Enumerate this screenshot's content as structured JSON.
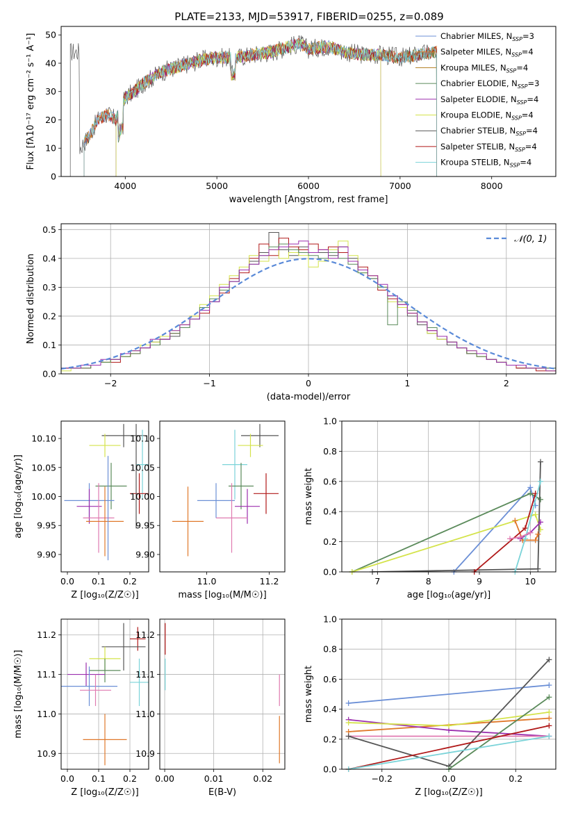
{
  "title": "PLATE=2133, MJD=53917, FIBERID=0255, z=0.089",
  "colors": {
    "Chabrier MILES": "#6b8fd6",
    "Salpeter MILES": "#e0782a",
    "Kroupa MILES": "#b07b1c",
    "Chabrier ELODIE": "#5a8a5a",
    "Salpeter ELODIE": "#9b2fae",
    "Kroupa ELODIE": "#d4e34a",
    "Chabrier STELIB": "#555555",
    "Salpeter STELIB": "#b01818",
    "Kroupa STELIB": "#7ad3d8",
    "pink": "#e07ab0",
    "normal_curve": "#5a8ad8"
  },
  "legend1": [
    {
      "name": "Chabrier MILES",
      "label": "Chabrier MILES, N",
      "sub": "SSP",
      "tail": "=3"
    },
    {
      "name": "Salpeter MILES",
      "label": "Salpeter MILES, N",
      "sub": "SSP",
      "tail": "=4"
    },
    {
      "name": "Kroupa MILES",
      "label": "Kroupa MILES, N",
      "sub": "SSP",
      "tail": "=4"
    },
    {
      "name": "Chabrier ELODIE",
      "label": "Chabrier ELODIE, N",
      "sub": "SSP",
      "tail": "=3"
    },
    {
      "name": "Salpeter ELODIE",
      "label": "Salpeter ELODIE, N",
      "sub": "SSP",
      "tail": "=4"
    },
    {
      "name": "Kroupa ELODIE",
      "label": "Kroupa ELODIE, N",
      "sub": "SSP",
      "tail": "=4"
    },
    {
      "name": "Chabrier STELIB",
      "label": "Chabrier STELIB, N",
      "sub": "SSP",
      "tail": "=4"
    },
    {
      "name": "Salpeter STELIB",
      "label": "Salpeter STELIB, N",
      "sub": "SSP",
      "tail": "=4"
    },
    {
      "name": "Kroupa STELIB",
      "label": "Kroupa STELIB, N",
      "sub": "SSP",
      "tail": "=4"
    }
  ],
  "legend2": {
    "label": "𝒩(0, 1)"
  },
  "chart_data": [
    {
      "id": "spectrum",
      "type": "line",
      "xlabel": "wavelength [Angstrom, rest frame]",
      "ylabel": "Flux [f_λ 10^-17 erg cm^-2 s^-1 A^-1]",
      "xlim": [
        3300,
        8700
      ],
      "ylim": [
        0,
        53
      ],
      "xticks": [
        4000,
        5000,
        6000,
        7000,
        8000
      ],
      "yticks": [
        0,
        10,
        20,
        30,
        40,
        50
      ],
      "series_trace": {
        "x": [
          3500,
          3600,
          3700,
          3800,
          3900,
          4000,
          4100,
          4200,
          4300,
          4400,
          4600,
          4800,
          5000,
          5200,
          5400,
          5600,
          5800,
          5900,
          6000,
          6200,
          6400,
          6600,
          6800,
          7000,
          7200,
          7400
        ],
        "y": [
          10,
          14,
          20,
          22,
          20,
          28,
          30,
          33,
          35,
          37,
          39,
          41,
          42,
          42,
          43,
          44,
          46,
          47,
          45,
          46,
          44,
          43,
          43,
          42,
          43,
          44
        ]
      }
    },
    {
      "id": "residual_hist",
      "type": "bar",
      "xlabel": "(data-model)/error",
      "ylabel": "Normed distribution",
      "xlim": [
        -2.5,
        2.5
      ],
      "ylim": [
        0,
        0.52
      ],
      "xticks": [
        -2,
        -1,
        0,
        1,
        2
      ],
      "yticks": [
        0.0,
        0.1,
        0.2,
        0.3,
        0.4,
        0.5
      ],
      "bin_edges": [
        -2.5,
        -2.4,
        -2.3,
        -2.2,
        -2.1,
        -2.0,
        -1.9,
        -1.8,
        -1.7,
        -1.6,
        -1.5,
        -1.4,
        -1.3,
        -1.2,
        -1.1,
        -1.0,
        -0.9,
        -0.8,
        -0.7,
        -0.6,
        -0.5,
        -0.4,
        -0.3,
        -0.2,
        -0.1,
        0.0,
        0.1,
        0.2,
        0.3,
        0.4,
        0.5,
        0.6,
        0.7,
        0.8,
        0.9,
        1.0,
        1.1,
        1.2,
        1.3,
        1.4,
        1.5,
        1.6,
        1.7,
        1.8,
        1.9,
        2.0,
        2.1,
        2.2,
        2.3,
        2.4,
        2.5
      ],
      "series": [
        {
          "name": "Chabrier STELIB",
          "values": [
            0.02,
            0.02,
            0.03,
            0.03,
            0.04,
            0.05,
            0.06,
            0.08,
            0.09,
            0.11,
            0.12,
            0.13,
            0.16,
            0.19,
            0.23,
            0.25,
            0.3,
            0.32,
            0.36,
            0.39,
            0.42,
            0.49,
            0.43,
            0.41,
            0.44,
            0.42,
            0.42,
            0.41,
            0.44,
            0.4,
            0.36,
            0.33,
            0.3,
            0.27,
            0.23,
            0.2,
            0.17,
            0.14,
            0.12,
            0.1,
            0.09,
            0.07,
            0.06,
            0.05,
            0.04,
            0.03,
            0.02,
            0.02,
            0.02,
            0.02
          ]
        },
        {
          "name": "Salpeter STELIB",
          "values": [
            0.02,
            0.02,
            0.02,
            0.03,
            0.04,
            0.04,
            0.06,
            0.07,
            0.09,
            0.1,
            0.12,
            0.14,
            0.17,
            0.2,
            0.21,
            0.26,
            0.28,
            0.33,
            0.35,
            0.4,
            0.45,
            0.41,
            0.47,
            0.44,
            0.43,
            0.45,
            0.43,
            0.44,
            0.42,
            0.39,
            0.37,
            0.34,
            0.29,
            0.26,
            0.24,
            0.21,
            0.18,
            0.15,
            0.13,
            0.11,
            0.09,
            0.07,
            0.06,
            0.05,
            0.04,
            0.03,
            0.02,
            0.02,
            0.01,
            0.01
          ]
        },
        {
          "name": "Kroupa ELODIE",
          "values": [
            0.01,
            0.02,
            0.03,
            0.03,
            0.04,
            0.05,
            0.06,
            0.08,
            0.1,
            0.11,
            0.13,
            0.15,
            0.17,
            0.2,
            0.24,
            0.27,
            0.31,
            0.34,
            0.37,
            0.41,
            0.39,
            0.43,
            0.4,
            0.42,
            0.41,
            0.37,
            0.39,
            0.43,
            0.46,
            0.41,
            0.35,
            0.34,
            0.3,
            0.25,
            0.23,
            0.21,
            0.18,
            0.14,
            0.12,
            0.11,
            0.09,
            0.08,
            0.06,
            0.05,
            0.04,
            0.03,
            0.03,
            0.02,
            0.02,
            0.01
          ]
        },
        {
          "name": "Chabrier ELODIE",
          "values": [
            0.02,
            0.02,
            0.02,
            0.03,
            0.04,
            0.05,
            0.06,
            0.07,
            0.09,
            0.1,
            0.12,
            0.14,
            0.16,
            0.19,
            0.23,
            0.26,
            0.29,
            0.32,
            0.36,
            0.38,
            0.41,
            0.44,
            0.45,
            0.43,
            0.42,
            0.41,
            0.4,
            0.42,
            0.4,
            0.38,
            0.35,
            0.33,
            0.3,
            0.17,
            0.25,
            0.22,
            0.18,
            0.16,
            0.13,
            0.11,
            0.09,
            0.07,
            0.06,
            0.05,
            0.04,
            0.03,
            0.03,
            0.02,
            0.02,
            0.02
          ]
        },
        {
          "name": "Salpeter ELODIE",
          "values": [
            0.02,
            0.02,
            0.03,
            0.03,
            0.05,
            0.05,
            0.07,
            0.08,
            0.09,
            0.12,
            0.12,
            0.15,
            0.17,
            0.19,
            0.22,
            0.25,
            0.3,
            0.32,
            0.36,
            0.38,
            0.41,
            0.43,
            0.44,
            0.45,
            0.46,
            0.42,
            0.43,
            0.4,
            0.44,
            0.39,
            0.36,
            0.34,
            0.31,
            0.27,
            0.24,
            0.21,
            0.18,
            0.15,
            0.13,
            0.11,
            0.09,
            0.08,
            0.07,
            0.05,
            0.04,
            0.03,
            0.03,
            0.02,
            0.02,
            0.01
          ]
        }
      ],
      "normal": {
        "label": "N(0,1)",
        "mu": 0,
        "sigma": 1
      }
    },
    {
      "id": "age_vs_Z",
      "type": "scatter",
      "xlabel": "Z [log10(Z/Z☉)]",
      "ylabel": "age  [log10(age/yr)]",
      "xlim": [
        -0.02,
        0.26
      ],
      "ylim": [
        9.87,
        10.13
      ],
      "xticks": [
        0.0,
        0.1,
        0.2
      ],
      "yticks": [
        9.9,
        9.95,
        10.0,
        10.05,
        10.1
      ],
      "errorbars": [
        {
          "c": "Chabrier STELIB",
          "x": 0.18,
          "y": 10.105,
          "xe": 0.07,
          "ye": 0.02
        },
        {
          "c": "Kroupa STELIB",
          "x": 0.24,
          "y": 10.055,
          "xe": 0.02,
          "ye": 0.06
        },
        {
          "c": "Kroupa ELODIE",
          "x": 0.12,
          "y": 10.088,
          "xe": 0.05,
          "ye": 0.02
        },
        {
          "c": "Chabrier ELODIE",
          "x": 0.14,
          "y": 10.018,
          "xe": 0.05,
          "ye": 0.04
        },
        {
          "c": "Chabrier MILES",
          "x": 0.07,
          "y": 9.993,
          "xe": 0.08,
          "ye": 0.03
        },
        {
          "c": "Salpeter ELODIE",
          "x": 0.07,
          "y": 9.983,
          "xe": 0.04,
          "ye": 0.03
        },
        {
          "c": "Salpeter STELIB",
          "x": 0.23,
          "y": 10.005,
          "xe": 0.03,
          "ye": 0.035
        },
        {
          "c": "pink",
          "x": 0.1,
          "y": 9.963,
          "xe": 0.05,
          "ye": 0.06
        },
        {
          "c": "Salpeter MILES",
          "x": 0.12,
          "y": 9.957,
          "xe": 0.06,
          "ye": 0.06
        },
        {
          "c": "Chabrier MILES",
          "x": 0.13,
          "y": 9.98,
          "xe": 0.0,
          "ye": 0.09
        },
        {
          "c": "Chabrier STELIB",
          "x": 0.22,
          "y": 10.035,
          "xe": 0.0,
          "ye": 0.09
        }
      ]
    },
    {
      "id": "age_vs_mass",
      "type": "scatter",
      "xlabel": "mass [log10(M/M☉)]",
      "ylabel": "",
      "xlim": [
        10.85,
        11.25
      ],
      "ylim": [
        9.87,
        10.13
      ],
      "xticks": [
        11.0,
        11.2
      ],
      "yticks": [
        9.9,
        9.95,
        10.0,
        10.05,
        10.1
      ],
      "errorbars": [
        {
          "c": "Chabrier STELIB",
          "x": 11.17,
          "y": 10.105,
          "xe": 0.06,
          "ye": 0.02
        },
        {
          "c": "Kroupa ELODIE",
          "x": 11.14,
          "y": 10.088,
          "xe": 0.04,
          "ye": 0.02
        },
        {
          "c": "Kroupa STELIB",
          "x": 11.09,
          "y": 10.055,
          "xe": 0.04,
          "ye": 0.06
        },
        {
          "c": "Chabrier ELODIE",
          "x": 11.11,
          "y": 10.018,
          "xe": 0.04,
          "ye": 0.04
        },
        {
          "c": "Chabrier MILES",
          "x": 11.03,
          "y": 9.993,
          "xe": 0.06,
          "ye": 0.03
        },
        {
          "c": "Salpeter STELIB",
          "x": 11.19,
          "y": 10.005,
          "xe": 0.04,
          "ye": 0.035
        },
        {
          "c": "Salpeter ELODIE",
          "x": 11.13,
          "y": 9.983,
          "xe": 0.04,
          "ye": 0.03
        },
        {
          "c": "pink",
          "x": 11.08,
          "y": 9.963,
          "xe": 0.05,
          "ye": 0.06
        },
        {
          "c": "Salpeter MILES",
          "x": 10.94,
          "y": 9.957,
          "xe": 0.05,
          "ye": 0.06
        }
      ]
    },
    {
      "id": "weight_vs_age",
      "type": "line",
      "xlabel": "age  [log10(age/yr)]",
      "ylabel": "mass weight",
      "xlim": [
        6.3,
        10.5
      ],
      "ylim": [
        0,
        1.0
      ],
      "xticks": [
        7,
        8,
        9,
        10
      ],
      "yticks": [
        0.0,
        0.2,
        0.4,
        0.6,
        0.8,
        1.0
      ],
      "series": [
        {
          "c": "Chabrier MILES",
          "x": [
            8.5,
            10.0,
            10.1
          ],
          "y": [
            0.0,
            0.56,
            0.44
          ]
        },
        {
          "c": "Chabrier ELODIE",
          "x": [
            6.5,
            10.0,
            10.2
          ],
          "y": [
            0.0,
            0.52,
            0.48
          ]
        },
        {
          "c": "Kroupa ELODIE",
          "x": [
            6.5,
            10.1,
            10.2
          ],
          "y": [
            0.0,
            0.38,
            0.28
          ]
        },
        {
          "c": "Chabrier STELIB",
          "x": [
            6.9,
            10.15,
            10.2
          ],
          "y": [
            0.0,
            0.02,
            0.73
          ]
        },
        {
          "c": "Salpeter MILES",
          "x": [
            9.7,
            9.85,
            10.1,
            10.15
          ],
          "y": [
            0.34,
            0.21,
            0.21,
            0.25
          ]
        },
        {
          "c": "Salpeter ELODIE",
          "x": [
            9.8,
            10.0,
            10.2
          ],
          "y": [
            0.22,
            0.26,
            0.33
          ]
        },
        {
          "c": "Salpeter STELIB",
          "x": [
            8.9,
            9.9,
            10.1
          ],
          "y": [
            0.0,
            0.29,
            0.52
          ]
        },
        {
          "c": "Kroupa STELIB",
          "x": [
            9.7,
            9.9,
            10.2
          ],
          "y": [
            0.0,
            0.22,
            0.6
          ]
        },
        {
          "c": "pink",
          "x": [
            9.6,
            9.8,
            10.0
          ],
          "y": [
            0.22,
            0.23,
            0.26
          ]
        }
      ]
    },
    {
      "id": "mass_vs_Z",
      "type": "scatter",
      "xlabel": "Z [log10(Z/Z☉)]",
      "ylabel": "mass [log10(M/M☉)]",
      "xlim": [
        -0.02,
        0.26
      ],
      "ylim": [
        10.86,
        11.24
      ],
      "xticks": [
        0.0,
        0.1,
        0.2
      ],
      "yticks": [
        10.9,
        11.0,
        11.1,
        11.2
      ],
      "errorbars": [
        {
          "c": "Salpeter STELIB",
          "x": 0.225,
          "y": 11.19,
          "xe": 0.025,
          "ye": 0.03
        },
        {
          "c": "Chabrier STELIB",
          "x": 0.18,
          "y": 11.17,
          "xe": 0.07,
          "ye": 0.06
        },
        {
          "c": "Kroupa ELODIE",
          "x": 0.12,
          "y": 11.14,
          "xe": 0.05,
          "ye": 0.03
        },
        {
          "c": "Chabrier ELODIE",
          "x": 0.12,
          "y": 11.11,
          "xe": 0.05,
          "ye": 0.03
        },
        {
          "c": "Salpeter ELODIE",
          "x": 0.06,
          "y": 11.1,
          "xe": 0.06,
          "ye": 0.03
        },
        {
          "c": "Kroupa STELIB",
          "x": 0.23,
          "y": 11.08,
          "xe": 0.03,
          "ye": 0.06
        },
        {
          "c": "Chabrier MILES",
          "x": 0.07,
          "y": 11.07,
          "xe": 0.09,
          "ye": 0.05
        },
        {
          "c": "pink",
          "x": 0.09,
          "y": 11.06,
          "xe": 0.05,
          "ye": 0.04
        },
        {
          "c": "Salpeter MILES",
          "x": 0.12,
          "y": 10.935,
          "xe": 0.07,
          "ye": 0.065
        }
      ]
    },
    {
      "id": "mass_vs_ebv",
      "type": "scatter",
      "xlabel": "E(B-V)",
      "ylabel": "",
      "xlim": [
        -0.001,
        0.0245
      ],
      "ylim": [
        10.86,
        11.24
      ],
      "xticks": [
        0.0,
        0.01,
        0.02
      ],
      "yticks": [
        10.9,
        11.0,
        11.1,
        11.2
      ],
      "errorbars": [
        {
          "c": "Salpeter STELIB",
          "x": 0.0001,
          "y": 11.19,
          "xe": 0,
          "ye": 0.04
        },
        {
          "c": "Kroupa STELIB",
          "x": 0.0001,
          "y": 11.1,
          "xe": 0,
          "ye": 0.04
        },
        {
          "c": "pink",
          "x": 0.0234,
          "y": 11.06,
          "xe": 0,
          "ye": 0.04
        },
        {
          "c": "Salpeter MILES",
          "x": 0.0234,
          "y": 10.935,
          "xe": 0,
          "ye": 0.06
        }
      ]
    },
    {
      "id": "weight_vs_Z",
      "type": "line",
      "xlabel": "Z [log10(Z/Z☉)]",
      "ylabel": "mass weight",
      "xlim": [
        -0.32,
        0.32
      ],
      "ylim": [
        0,
        1.0
      ],
      "xticks": [
        -0.2,
        0.0,
        0.2
      ],
      "yticks": [
        0.0,
        0.2,
        0.4,
        0.6,
        0.8,
        1.0
      ],
      "series": [
        {
          "c": "Chabrier MILES",
          "x": [
            -0.3,
            0.3
          ],
          "y": [
            0.44,
            0.56
          ]
        },
        {
          "c": "Salpeter MILES",
          "x": [
            -0.3,
            0.3
          ],
          "y": [
            0.25,
            0.34
          ]
        },
        {
          "c": "Salpeter ELODIE",
          "x": [
            -0.3,
            0.0,
            0.3
          ],
          "y": [
            0.33,
            0.26,
            0.22
          ]
        },
        {
          "c": "pink",
          "x": [
            -0.3,
            0.3
          ],
          "y": [
            0.22,
            0.22
          ]
        },
        {
          "c": "Kroupa ELODIE",
          "x": [
            -0.3,
            0.0,
            0.3
          ],
          "y": [
            0.31,
            0.29,
            0.38
          ]
        },
        {
          "c": "Chabrier STELIB",
          "x": [
            -0.3,
            0.0,
            0.3
          ],
          "y": [
            0.22,
            0.02,
            0.73
          ]
        },
        {
          "c": "Chabrier ELODIE",
          "x": [
            0.0,
            0.3
          ],
          "y": [
            0.0,
            0.48
          ]
        },
        {
          "c": "Salpeter STELIB",
          "x": [
            -0.3,
            0.3
          ],
          "y": [
            0.0,
            0.29
          ]
        },
        {
          "c": "Kroupa STELIB",
          "x": [
            -0.3,
            0.3
          ],
          "y": [
            0.0,
            0.22
          ]
        }
      ]
    }
  ]
}
